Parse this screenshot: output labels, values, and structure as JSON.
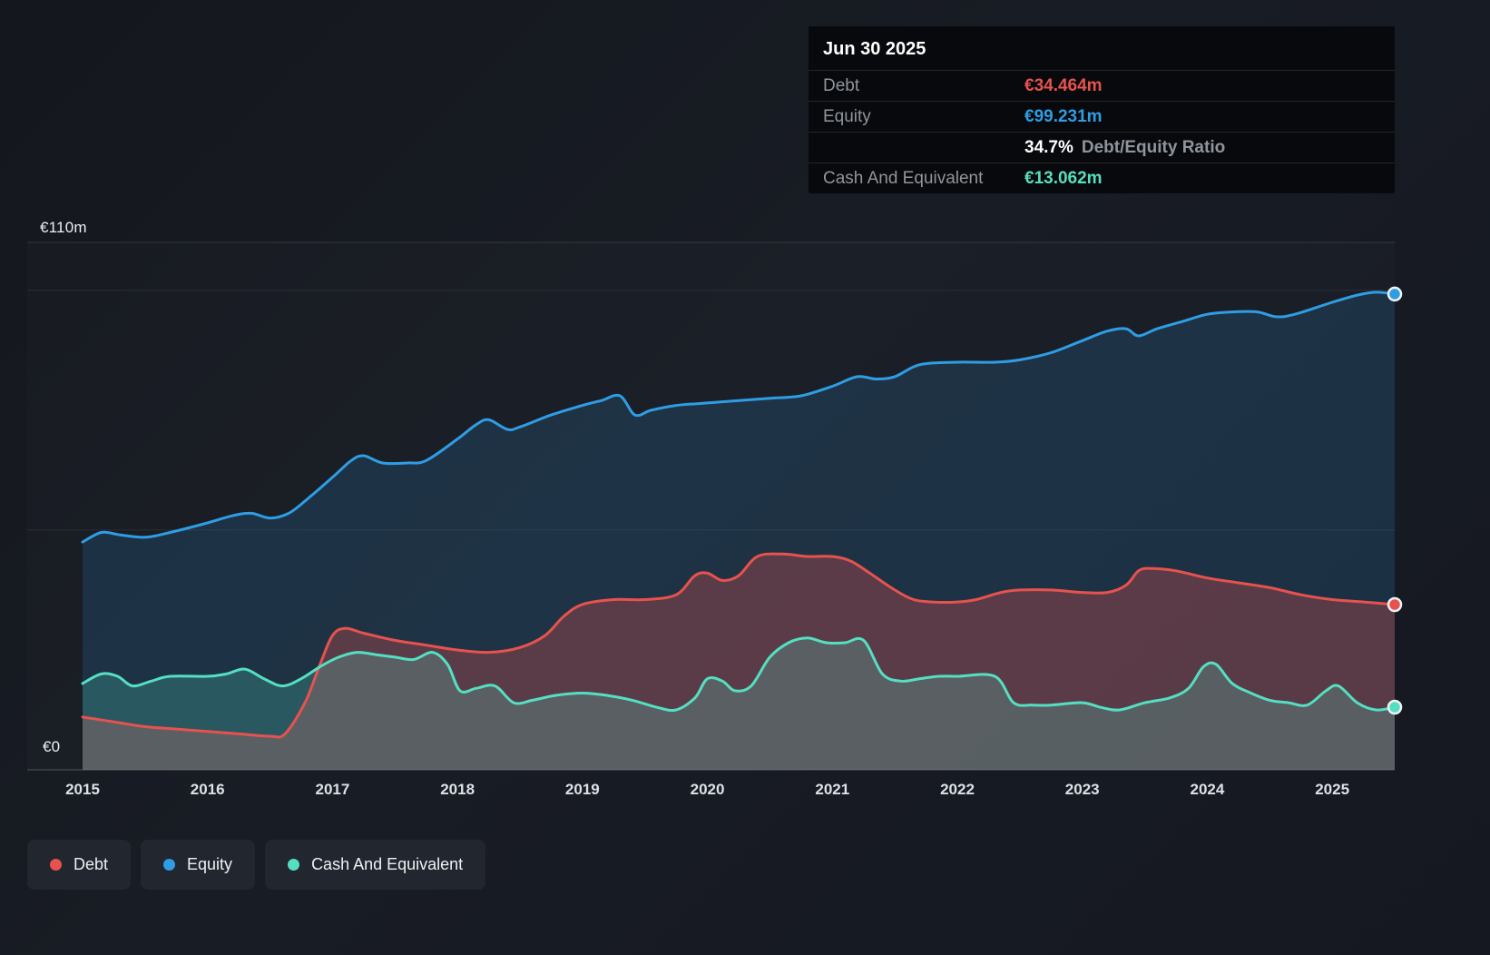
{
  "colors": {
    "background": "#171a21",
    "debt": "#e8524e",
    "equity": "#2f9de4",
    "cash": "#55dfc2"
  },
  "axis": {
    "y_top_label": "€110m",
    "y_bottom_label": "€0"
  },
  "tooltip": {
    "date": "Jun 30 2025",
    "debt": {
      "label": "Debt",
      "value": "€34.464m"
    },
    "equity": {
      "label": "Equity",
      "value": "€99.231m"
    },
    "ratio": {
      "value": "34.7%",
      "label": "Debt/Equity Ratio"
    },
    "cash": {
      "label": "Cash And Equivalent",
      "value": "€13.062m"
    }
  },
  "legend": {
    "debt": "Debt",
    "equity": "Equity",
    "cash": "Cash And Equivalent"
  },
  "chart_data": {
    "type": "area",
    "unit": "€m",
    "xlim": [
      2015,
      2025.5
    ],
    "ylim": [
      0,
      110
    ],
    "gridlines": [
      0,
      50,
      100,
      110
    ],
    "x_tick_labels": [
      "2015",
      "2016",
      "2017",
      "2018",
      "2019",
      "2020",
      "2021",
      "2022",
      "2023",
      "2024",
      "2025"
    ],
    "legend_position": "bottom-left",
    "series": [
      {
        "name": "Equity",
        "color": "#2f9de4",
        "final_value": 99.231,
        "points": [
          [
            2015.0,
            47.5
          ],
          [
            2015.15,
            49.5
          ],
          [
            2015.3,
            49.0
          ],
          [
            2015.5,
            48.5
          ],
          [
            2015.7,
            49.5
          ],
          [
            2016.0,
            51.5
          ],
          [
            2016.2,
            53.0
          ],
          [
            2016.35,
            53.5
          ],
          [
            2016.5,
            52.5
          ],
          [
            2016.65,
            53.5
          ],
          [
            2016.8,
            56.5
          ],
          [
            2017.0,
            61.0
          ],
          [
            2017.15,
            64.5
          ],
          [
            2017.25,
            65.5
          ],
          [
            2017.4,
            64.0
          ],
          [
            2017.6,
            64.0
          ],
          [
            2017.75,
            64.5
          ],
          [
            2018.0,
            69.0
          ],
          [
            2018.15,
            72.0
          ],
          [
            2018.25,
            73.0
          ],
          [
            2018.4,
            71.0
          ],
          [
            2018.5,
            71.5
          ],
          [
            2018.75,
            74.0
          ],
          [
            2019.0,
            76.0
          ],
          [
            2019.15,
            77.0
          ],
          [
            2019.3,
            78.0
          ],
          [
            2019.42,
            74.0
          ],
          [
            2019.55,
            75.0
          ],
          [
            2019.75,
            76.0
          ],
          [
            2020.0,
            76.5
          ],
          [
            2020.25,
            77.0
          ],
          [
            2020.5,
            77.5
          ],
          [
            2020.75,
            78.0
          ],
          [
            2021.0,
            80.0
          ],
          [
            2021.2,
            82.0
          ],
          [
            2021.35,
            81.5
          ],
          [
            2021.5,
            82.0
          ],
          [
            2021.7,
            84.5
          ],
          [
            2022.0,
            85.0
          ],
          [
            2022.3,
            85.0
          ],
          [
            2022.5,
            85.5
          ],
          [
            2022.75,
            87.0
          ],
          [
            2023.0,
            89.5
          ],
          [
            2023.2,
            91.5
          ],
          [
            2023.35,
            92.0
          ],
          [
            2023.45,
            90.5
          ],
          [
            2023.6,
            92.0
          ],
          [
            2023.8,
            93.5
          ],
          [
            2024.0,
            95.0
          ],
          [
            2024.2,
            95.5
          ],
          [
            2024.4,
            95.5
          ],
          [
            2024.55,
            94.5
          ],
          [
            2024.7,
            95.0
          ],
          [
            2025.0,
            97.5
          ],
          [
            2025.2,
            99.0
          ],
          [
            2025.35,
            99.6
          ],
          [
            2025.5,
            99.231
          ]
        ]
      },
      {
        "name": "Debt",
        "color": "#e8524e",
        "final_value": 34.464,
        "points": [
          [
            2015.0,
            11.0
          ],
          [
            2015.25,
            10.0
          ],
          [
            2015.5,
            9.0
          ],
          [
            2015.75,
            8.5
          ],
          [
            2016.0,
            8.0
          ],
          [
            2016.25,
            7.5
          ],
          [
            2016.5,
            7.0
          ],
          [
            2016.62,
            7.5
          ],
          [
            2016.78,
            14.0
          ],
          [
            2016.9,
            22.0
          ],
          [
            2017.0,
            28.0
          ],
          [
            2017.1,
            29.5
          ],
          [
            2017.25,
            28.5
          ],
          [
            2017.5,
            27.0
          ],
          [
            2017.75,
            26.0
          ],
          [
            2018.0,
            25.0
          ],
          [
            2018.25,
            24.5
          ],
          [
            2018.5,
            25.5
          ],
          [
            2018.7,
            28.0
          ],
          [
            2018.85,
            32.0
          ],
          [
            2019.0,
            34.5
          ],
          [
            2019.25,
            35.5
          ],
          [
            2019.5,
            35.5
          ],
          [
            2019.75,
            36.5
          ],
          [
            2019.9,
            40.5
          ],
          [
            2020.0,
            41.0
          ],
          [
            2020.12,
            39.5
          ],
          [
            2020.25,
            40.5
          ],
          [
            2020.4,
            44.5
          ],
          [
            2020.6,
            45.0
          ],
          [
            2020.8,
            44.5
          ],
          [
            2021.0,
            44.5
          ],
          [
            2021.15,
            43.5
          ],
          [
            2021.3,
            41.0
          ],
          [
            2021.5,
            37.5
          ],
          [
            2021.65,
            35.5
          ],
          [
            2021.8,
            35.0
          ],
          [
            2022.0,
            35.0
          ],
          [
            2022.15,
            35.5
          ],
          [
            2022.35,
            37.0
          ],
          [
            2022.5,
            37.5
          ],
          [
            2022.75,
            37.5
          ],
          [
            2023.0,
            37.0
          ],
          [
            2023.2,
            37.0
          ],
          [
            2023.35,
            38.5
          ],
          [
            2023.45,
            41.5
          ],
          [
            2023.55,
            42.0
          ],
          [
            2023.75,
            41.5
          ],
          [
            2024.0,
            40.0
          ],
          [
            2024.25,
            39.0
          ],
          [
            2024.5,
            38.0
          ],
          [
            2024.75,
            36.5
          ],
          [
            2025.0,
            35.5
          ],
          [
            2025.25,
            35.0
          ],
          [
            2025.5,
            34.464
          ]
        ]
      },
      {
        "name": "Cash And Equivalent",
        "color": "#55dfc2",
        "final_value": 13.062,
        "points": [
          [
            2015.0,
            18.0
          ],
          [
            2015.15,
            20.0
          ],
          [
            2015.28,
            19.5
          ],
          [
            2015.4,
            17.5
          ],
          [
            2015.55,
            18.5
          ],
          [
            2015.7,
            19.5
          ],
          [
            2016.0,
            19.5
          ],
          [
            2016.15,
            20.0
          ],
          [
            2016.3,
            21.0
          ],
          [
            2016.45,
            19.0
          ],
          [
            2016.6,
            17.5
          ],
          [
            2016.75,
            19.0
          ],
          [
            2016.9,
            21.5
          ],
          [
            2017.05,
            23.5
          ],
          [
            2017.2,
            24.5
          ],
          [
            2017.35,
            24.0
          ],
          [
            2017.5,
            23.5
          ],
          [
            2017.65,
            23.0
          ],
          [
            2017.8,
            24.5
          ],
          [
            2017.92,
            22.0
          ],
          [
            2018.02,
            16.5
          ],
          [
            2018.15,
            17.0
          ],
          [
            2018.3,
            17.5
          ],
          [
            2018.45,
            14.0
          ],
          [
            2018.6,
            14.5
          ],
          [
            2018.78,
            15.5
          ],
          [
            2019.0,
            16.0
          ],
          [
            2019.2,
            15.5
          ],
          [
            2019.4,
            14.5
          ],
          [
            2019.6,
            13.0
          ],
          [
            2019.75,
            12.5
          ],
          [
            2019.9,
            15.0
          ],
          [
            2020.0,
            19.0
          ],
          [
            2020.12,
            18.5
          ],
          [
            2020.22,
            16.5
          ],
          [
            2020.35,
            17.5
          ],
          [
            2020.5,
            23.5
          ],
          [
            2020.65,
            26.5
          ],
          [
            2020.8,
            27.5
          ],
          [
            2020.95,
            26.5
          ],
          [
            2021.1,
            26.5
          ],
          [
            2021.25,
            27.0
          ],
          [
            2021.4,
            20.0
          ],
          [
            2021.55,
            18.5
          ],
          [
            2021.7,
            19.0
          ],
          [
            2021.85,
            19.5
          ],
          [
            2022.0,
            19.5
          ],
          [
            2022.3,
            19.5
          ],
          [
            2022.45,
            14.0
          ],
          [
            2022.6,
            13.5
          ],
          [
            2022.75,
            13.5
          ],
          [
            2023.0,
            14.0
          ],
          [
            2023.15,
            13.0
          ],
          [
            2023.3,
            12.5
          ],
          [
            2023.5,
            14.0
          ],
          [
            2023.7,
            15.0
          ],
          [
            2023.85,
            17.0
          ],
          [
            2023.97,
            21.5
          ],
          [
            2024.07,
            22.0
          ],
          [
            2024.2,
            18.0
          ],
          [
            2024.35,
            16.0
          ],
          [
            2024.5,
            14.5
          ],
          [
            2024.65,
            14.0
          ],
          [
            2024.8,
            13.5
          ],
          [
            2024.95,
            16.5
          ],
          [
            2025.05,
            17.5
          ],
          [
            2025.2,
            14.0
          ],
          [
            2025.35,
            12.5
          ],
          [
            2025.5,
            13.062
          ]
        ]
      }
    ]
  }
}
